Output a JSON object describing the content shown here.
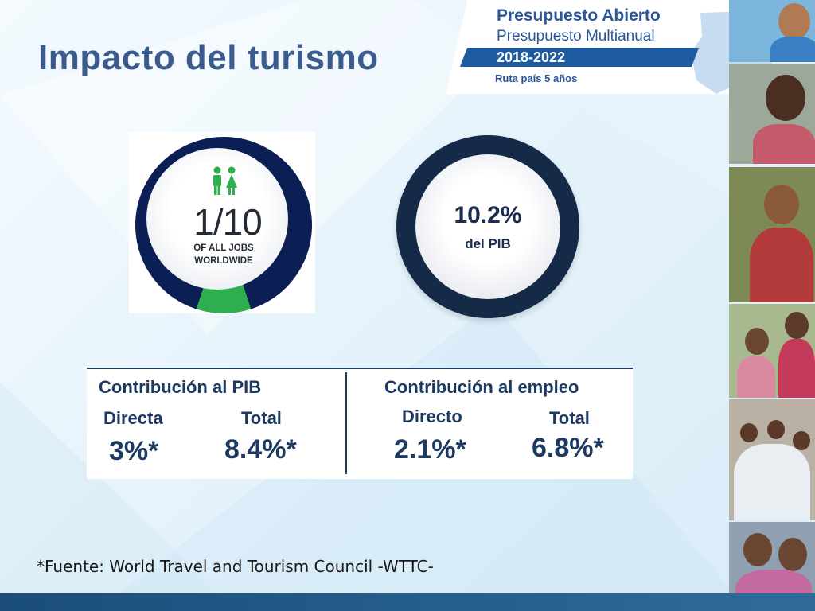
{
  "slide": {
    "title": "Impacto del turismo"
  },
  "logo": {
    "title": "Presupuesto Abierto",
    "subtitle": "Presupuesto Multianual",
    "years": "2018-2022",
    "tagline": "Ruta país 5 años"
  },
  "jobs_graphic": {
    "value": "1/10",
    "caption_line1": "OF ALL JOBS",
    "caption_line2": "WORLDWIDE",
    "share": 0.1,
    "colors": {
      "ring": "#0b1f55",
      "highlight": "#2eae4e",
      "people": "#2eae4e"
    }
  },
  "pib_graphic": {
    "value": "10.2%",
    "label": "del PIB",
    "colors": {
      "ring": "#142a47"
    }
  },
  "contribution": {
    "pib": {
      "heading": "Contribución al PIB",
      "direct_label": "Directa",
      "direct_value": "3%*",
      "total_label": "Total",
      "total_value": "8.4%*"
    },
    "employment": {
      "heading": "Contribución al empleo",
      "direct_label": "Directo",
      "direct_value": "2.1%*",
      "total_label": "Total",
      "total_value": "6.8%*"
    },
    "colors": {
      "text": "#1d3a63"
    }
  },
  "footnote": "*Fuente: World Travel and Tourism Council -WTTC-",
  "colors": {
    "title": "#3b5b8c",
    "brand_blue": "#2a5599",
    "bottom_bar": "#1a4d7a"
  }
}
